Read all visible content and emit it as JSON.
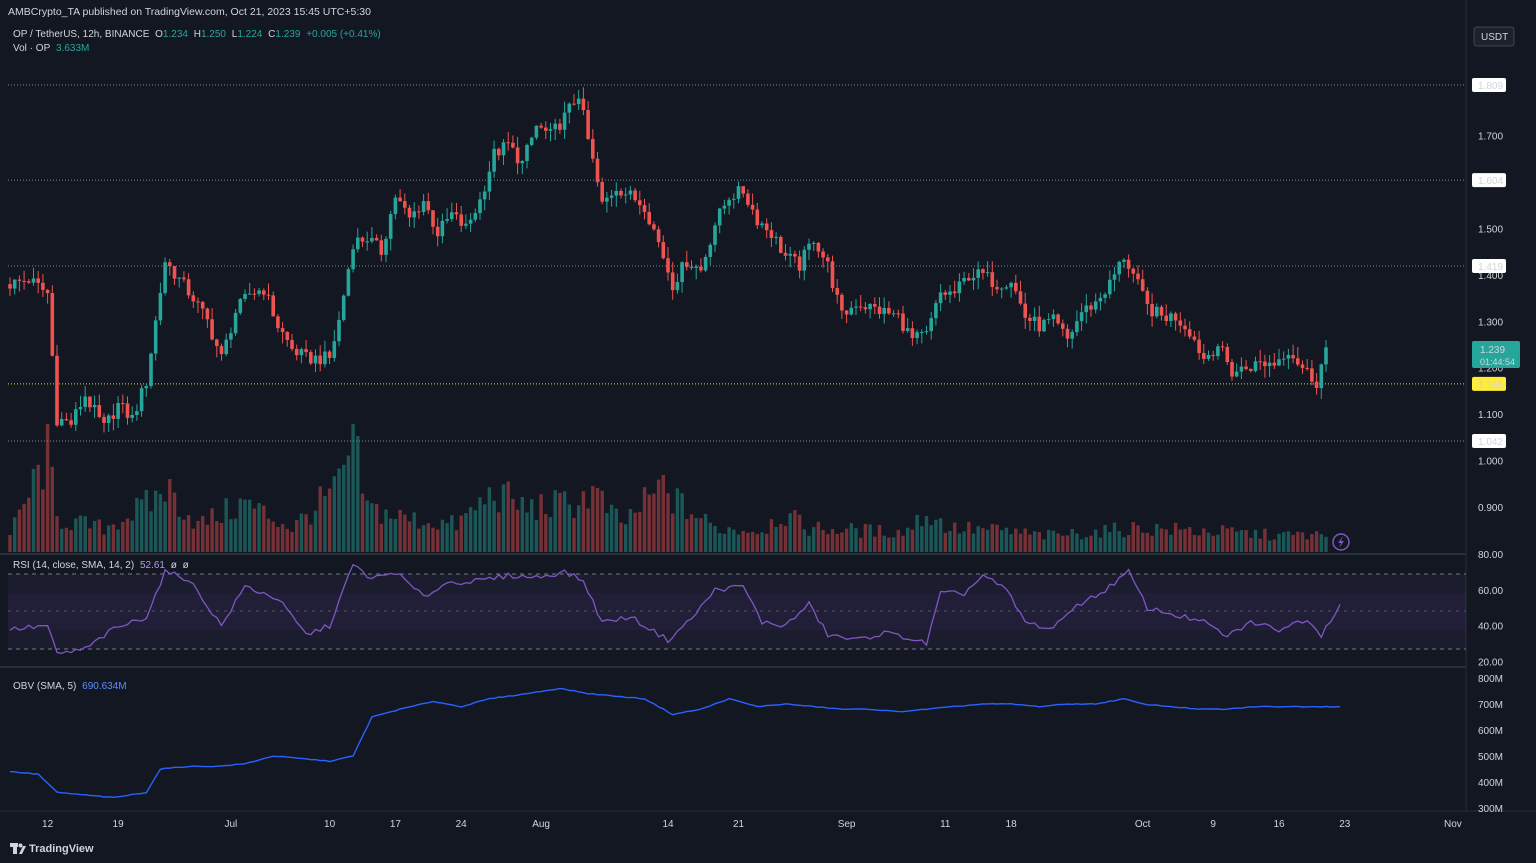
{
  "publisher": "AMBCrypto_TA published on TradingView.com, Oct 21, 2023 15:45 UTC+5:30",
  "symbol_line": {
    "symbol": "OP / TetherUS, 12h, BINANCE",
    "o_label": "O",
    "o": "1.234",
    "h_label": "H",
    "h": "1.250",
    "l_label": "L",
    "l": "1.224",
    "c_label": "C",
    "c": "1.239",
    "change": "+0.005 (+0.41%)"
  },
  "vol_line": {
    "label": "Vol · OP",
    "value": "3.633M"
  },
  "rsi_line": {
    "label": "RSI (14, close, SMA, 14, 2)",
    "value": "52.61",
    "extra1": "ø",
    "extra2": "ø"
  },
  "obv_line": {
    "label": "OBV (SMA, 5)",
    "value": "690.634M"
  },
  "currency_badge": "USDT",
  "last_price": {
    "value": "1.239",
    "countdown": "01:44:54"
  },
  "brand": "TradingView",
  "colors": {
    "background": "#131722",
    "up": "#26a69a",
    "down": "#ef5350",
    "rsi": "#7e57c2",
    "obv": "#2962ff",
    "support_highlight": "#ffeb3b"
  },
  "chart_data": [
    {
      "type": "candlestick",
      "title": "OP / TetherUS, 12h, BINANCE",
      "x_ticks": [
        "12",
        "19",
        "Jul",
        "10",
        "17",
        "24",
        "Aug",
        "14",
        "21",
        "Sep",
        "11",
        "18",
        "Oct",
        "9",
        "16",
        "23",
        "Nov"
      ],
      "y_ticks": [
        "1.700",
        "1.600",
        "1.500",
        "1.400",
        "1.300",
        "1.200",
        "1.100",
        "1.000",
        "0.900"
      ],
      "ylim": [
        0.83,
        1.9
      ],
      "horizontal_levels": [
        {
          "value": 1.809,
          "label": "1.809"
        },
        {
          "value": 1.604,
          "label": "1.604"
        },
        {
          "value": 1.419,
          "label": "1.419"
        },
        {
          "value": 1.165,
          "label": "1.165",
          "highlight": true
        },
        {
          "value": 1.042,
          "label": "1.042"
        }
      ],
      "price_path": [
        [
          0,
          1.38
        ],
        [
          4,
          1.39
        ],
        [
          8,
          1.36
        ],
        [
          10,
          1.09
        ],
        [
          13,
          1.08
        ],
        [
          16,
          1.14
        ],
        [
          20,
          1.07
        ],
        [
          23,
          1.12
        ],
        [
          26,
          1.09
        ],
        [
          29,
          1.17
        ],
        [
          33,
          1.43
        ],
        [
          36,
          1.39
        ],
        [
          39,
          1.35
        ],
        [
          42,
          1.3
        ],
        [
          45,
          1.22
        ],
        [
          48,
          1.32
        ],
        [
          51,
          1.36
        ],
        [
          54,
          1.37
        ],
        [
          57,
          1.29
        ],
        [
          60,
          1.24
        ],
        [
          63,
          1.22
        ],
        [
          66,
          1.22
        ],
        [
          68,
          1.22
        ],
        [
          70,
          1.3
        ],
        [
          73,
          1.47
        ],
        [
          76,
          1.48
        ],
        [
          79,
          1.45
        ],
        [
          82,
          1.57
        ],
        [
          85,
          1.52
        ],
        [
          88,
          1.56
        ],
        [
          91,
          1.49
        ],
        [
          94,
          1.53
        ],
        [
          97,
          1.5
        ],
        [
          100,
          1.56
        ],
        [
          103,
          1.66
        ],
        [
          106,
          1.68
        ],
        [
          109,
          1.64
        ],
        [
          112,
          1.72
        ],
        [
          115,
          1.7
        ],
        [
          118,
          1.74
        ],
        [
          121,
          1.79
        ],
        [
          123,
          1.69
        ],
        [
          126,
          1.55
        ],
        [
          129,
          1.59
        ],
        [
          132,
          1.57
        ],
        [
          135,
          1.55
        ],
        [
          138,
          1.47
        ],
        [
          141,
          1.38
        ],
        [
          144,
          1.43
        ],
        [
          147,
          1.41
        ],
        [
          150,
          1.51
        ],
        [
          153,
          1.57
        ],
        [
          156,
          1.58
        ],
        [
          159,
          1.52
        ],
        [
          162,
          1.49
        ],
        [
          165,
          1.44
        ],
        [
          168,
          1.42
        ],
        [
          171,
          1.48
        ],
        [
          174,
          1.42
        ],
        [
          177,
          1.31
        ],
        [
          180,
          1.34
        ],
        [
          183,
          1.33
        ],
        [
          186,
          1.32
        ],
        [
          189,
          1.31
        ],
        [
          192,
          1.26
        ],
        [
          195,
          1.27
        ],
        [
          198,
          1.36
        ],
        [
          201,
          1.36
        ],
        [
          204,
          1.4
        ],
        [
          207,
          1.4
        ],
        [
          210,
          1.38
        ],
        [
          213,
          1.39
        ],
        [
          216,
          1.31
        ],
        [
          219,
          1.29
        ],
        [
          222,
          1.3
        ],
        [
          225,
          1.26
        ],
        [
          228,
          1.32
        ],
        [
          231,
          1.34
        ],
        [
          234,
          1.38
        ],
        [
          237,
          1.44
        ],
        [
          239,
          1.4
        ],
        [
          242,
          1.33
        ],
        [
          245,
          1.31
        ],
        [
          248,
          1.31
        ],
        [
          251,
          1.28
        ],
        [
          254,
          1.22
        ],
        [
          257,
          1.25
        ],
        [
          260,
          1.19
        ],
        [
          263,
          1.2
        ],
        [
          266,
          1.21
        ],
        [
          269,
          1.21
        ],
        [
          272,
          1.24
        ],
        [
          275,
          1.2
        ],
        [
          278,
          1.17
        ],
        [
          280,
          1.24
        ]
      ],
      "volume_ylim": [
        0,
        100
      ],
      "volume_path": [
        [
          0,
          15
        ],
        [
          8,
          90
        ],
        [
          10,
          30
        ],
        [
          20,
          22
        ],
        [
          30,
          45
        ],
        [
          33,
          60
        ],
        [
          40,
          25
        ],
        [
          50,
          45
        ],
        [
          60,
          22
        ],
        [
          70,
          60
        ],
        [
          73,
          100
        ],
        [
          76,
          40
        ],
        [
          85,
          30
        ],
        [
          95,
          25
        ],
        [
          103,
          55
        ],
        [
          110,
          40
        ],
        [
          120,
          45
        ],
        [
          124,
          55
        ],
        [
          130,
          25
        ],
        [
          139,
          60
        ],
        [
          142,
          45
        ],
        [
          150,
          22
        ],
        [
          160,
          20
        ],
        [
          164,
          35
        ],
        [
          170,
          22
        ],
        [
          180,
          20
        ],
        [
          190,
          18
        ],
        [
          195,
          35
        ],
        [
          200,
          22
        ],
        [
          210,
          20
        ],
        [
          220,
          15
        ],
        [
          230,
          18
        ],
        [
          240,
          22
        ],
        [
          250,
          20
        ],
        [
          260,
          18
        ],
        [
          270,
          15
        ],
        [
          276,
          16
        ],
        [
          280,
          14
        ]
      ]
    },
    {
      "type": "line",
      "title": "RSI (14, close, SMA, 14, 2)",
      "y_ticks": [
        "80.00",
        "60.00",
        "40.00",
        "20.00"
      ],
      "ylim": [
        20,
        80
      ],
      "bands": [
        70,
        50,
        30
      ],
      "series": [
        {
          "name": "RSI",
          "values": [
            [
              0,
              38
            ],
            [
              8,
              40
            ],
            [
              10,
              24
            ],
            [
              16,
              27
            ],
            [
              22,
              38
            ],
            [
              29,
              45
            ],
            [
              33,
              70
            ],
            [
              38,
              66
            ],
            [
              45,
              40
            ],
            [
              50,
              62
            ],
            [
              57,
              55
            ],
            [
              63,
              35
            ],
            [
              68,
              40
            ],
            [
              73,
              74
            ],
            [
              77,
              66
            ],
            [
              82,
              70
            ],
            [
              88,
              56
            ],
            [
              93,
              64
            ],
            [
              100,
              65
            ],
            [
              106,
              68
            ],
            [
              112,
              67
            ],
            [
              118,
              70
            ],
            [
              122,
              65
            ],
            [
              126,
              42
            ],
            [
              132,
              45
            ],
            [
              140,
              32
            ],
            [
              145,
              44
            ],
            [
              150,
              60
            ],
            [
              156,
              62
            ],
            [
              160,
              42
            ],
            [
              165,
              40
            ],
            [
              170,
              52
            ],
            [
              174,
              35
            ],
            [
              180,
              32
            ],
            [
              186,
              36
            ],
            [
              190,
              34
            ],
            [
              195,
              30
            ],
            [
              198,
              58
            ],
            [
              203,
              58
            ],
            [
              207,
              68
            ],
            [
              212,
              60
            ],
            [
              216,
              42
            ],
            [
              222,
              38
            ],
            [
              226,
              50
            ],
            [
              232,
              58
            ],
            [
              238,
              70
            ],
            [
              242,
              50
            ],
            [
              248,
              46
            ],
            [
              254,
              42
            ],
            [
              259,
              34
            ],
            [
              264,
              42
            ],
            [
              270,
              38
            ],
            [
              276,
              44
            ],
            [
              279,
              35
            ],
            [
              283,
              52
            ]
          ]
        }
      ]
    },
    {
      "type": "line",
      "title": "OBV (SMA, 5)",
      "y_ticks": [
        "800M",
        "700M",
        "600M",
        "500M",
        "400M",
        "300M"
      ],
      "ylim": [
        300,
        800
      ],
      "series": [
        {
          "name": "OBV",
          "values": [
            [
              0,
              440
            ],
            [
              6,
              430
            ],
            [
              10,
              360
            ],
            [
              16,
              350
            ],
            [
              22,
              340
            ],
            [
              29,
              360
            ],
            [
              32,
              450
            ],
            [
              38,
              460
            ],
            [
              44,
              460
            ],
            [
              50,
              470
            ],
            [
              56,
              500
            ],
            [
              62,
              490
            ],
            [
              68,
              480
            ],
            [
              73,
              500
            ],
            [
              77,
              650
            ],
            [
              83,
              680
            ],
            [
              90,
              710
            ],
            [
              96,
              690
            ],
            [
              102,
              720
            ],
            [
              110,
              740
            ],
            [
              117,
              760
            ],
            [
              123,
              740
            ],
            [
              129,
              730
            ],
            [
              135,
              720
            ],
            [
              141,
              660
            ],
            [
              147,
              680
            ],
            [
              153,
              720
            ],
            [
              159,
              690
            ],
            [
              165,
              700
            ],
            [
              171,
              690
            ],
            [
              177,
              680
            ],
            [
              183,
              680
            ],
            [
              189,
              670
            ],
            [
              195,
              680
            ],
            [
              201,
              690
            ],
            [
              207,
              700
            ],
            [
              213,
              700
            ],
            [
              219,
              690
            ],
            [
              225,
              700
            ],
            [
              231,
              700
            ],
            [
              237,
              720
            ],
            [
              241,
              700
            ],
            [
              247,
              690
            ],
            [
              253,
              680
            ],
            [
              259,
              680
            ],
            [
              265,
              690
            ],
            [
              271,
              690
            ],
            [
              276,
              690
            ],
            [
              283,
              690
            ]
          ]
        }
      ]
    }
  ]
}
